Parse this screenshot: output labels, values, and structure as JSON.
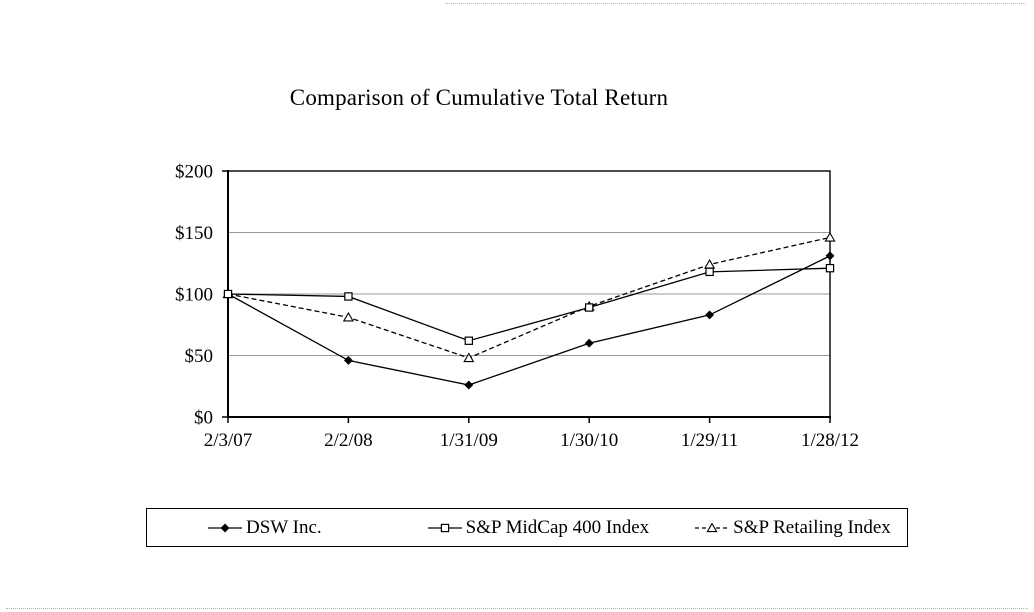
{
  "page": {
    "background": "#ffffff",
    "text_color": "#000000"
  },
  "chart_data": {
    "type": "line",
    "title": "Comparison of Cumulative Total Return",
    "categories": [
      "2/3/07",
      "2/2/08",
      "1/31/09",
      "1/30/10",
      "1/29/11",
      "1/28/12"
    ],
    "series": [
      {
        "name": "DSW Inc.",
        "values": [
          100,
          46,
          26,
          60,
          83,
          131
        ],
        "line_style": "solid",
        "marker": "filled-diamond",
        "color": "#000000"
      },
      {
        "name": "S&P MidCap 400 Index",
        "values": [
          100,
          98,
          62,
          89,
          118,
          121
        ],
        "line_style": "solid",
        "marker": "open-square",
        "color": "#000000"
      },
      {
        "name": "S&P Retailing Index",
        "values": [
          100,
          81,
          48,
          90,
          124,
          146
        ],
        "line_style": "dashed",
        "marker": "open-triangle",
        "color": "#000000"
      }
    ],
    "xlabel": "",
    "ylabel": "",
    "y_ticks": [
      "$200",
      "$150",
      "$100",
      "$50",
      "$0"
    ],
    "y_tick_values": [
      200,
      150,
      100,
      50,
      0
    ],
    "ylim": [
      0,
      200
    ],
    "grid": "horizontal",
    "gridline_color": "#9a9a9a",
    "axis_color": "#000000",
    "marker_fill_open": "#ffffff",
    "legend_position": "bottom"
  }
}
